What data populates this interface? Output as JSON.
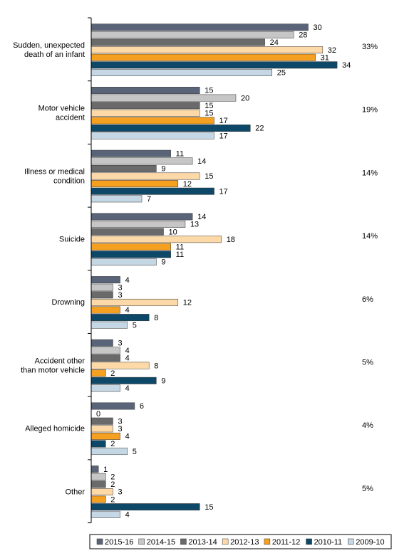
{
  "chart_data": {
    "type": "bar",
    "orientation": "horizontal",
    "categories": [
      [
        "Sudden, unexpected",
        "death of an infant"
      ],
      [
        "Motor vehicle",
        "accident"
      ],
      [
        "Illness or medical",
        "condition"
      ],
      [
        "Suicide"
      ],
      [
        "Drowning"
      ],
      [
        "Accident other",
        "than motor vehicle"
      ],
      [
        "Alleged homicide"
      ],
      [
        "Other"
      ]
    ],
    "percentages": [
      "33%",
      "19%",
      "14%",
      "14%",
      "6%",
      "5%",
      "4%",
      "5%"
    ],
    "series": [
      {
        "name": "2015-16",
        "color": "#5a6478",
        "values": [
          30,
          15,
          11,
          14,
          4,
          3,
          6,
          1
        ]
      },
      {
        "name": "2014-15",
        "color": "#c6c6c6",
        "values": [
          28,
          20,
          14,
          13,
          3,
          4,
          0,
          2
        ]
      },
      {
        "name": "2013-14",
        "color": "#6a6a6a",
        "values": [
          24,
          15,
          9,
          10,
          3,
          4,
          3,
          2
        ]
      },
      {
        "name": "2012-13",
        "color": "#fdd9a8",
        "values": [
          32,
          15,
          15,
          18,
          12,
          8,
          3,
          3
        ]
      },
      {
        "name": "2011-12",
        "color": "#f5a020",
        "values": [
          31,
          17,
          12,
          11,
          4,
          2,
          4,
          2
        ]
      },
      {
        "name": "2010-11",
        "color": "#0d4868",
        "values": [
          34,
          22,
          17,
          11,
          8,
          9,
          2,
          15
        ]
      },
      {
        "name": "2009-10",
        "color": "#c5d7e4",
        "values": [
          25,
          17,
          7,
          9,
          5,
          4,
          5,
          4
        ]
      }
    ],
    "xlim": [
      0,
      40
    ],
    "grid": false,
    "legend_position": "bottom"
  }
}
